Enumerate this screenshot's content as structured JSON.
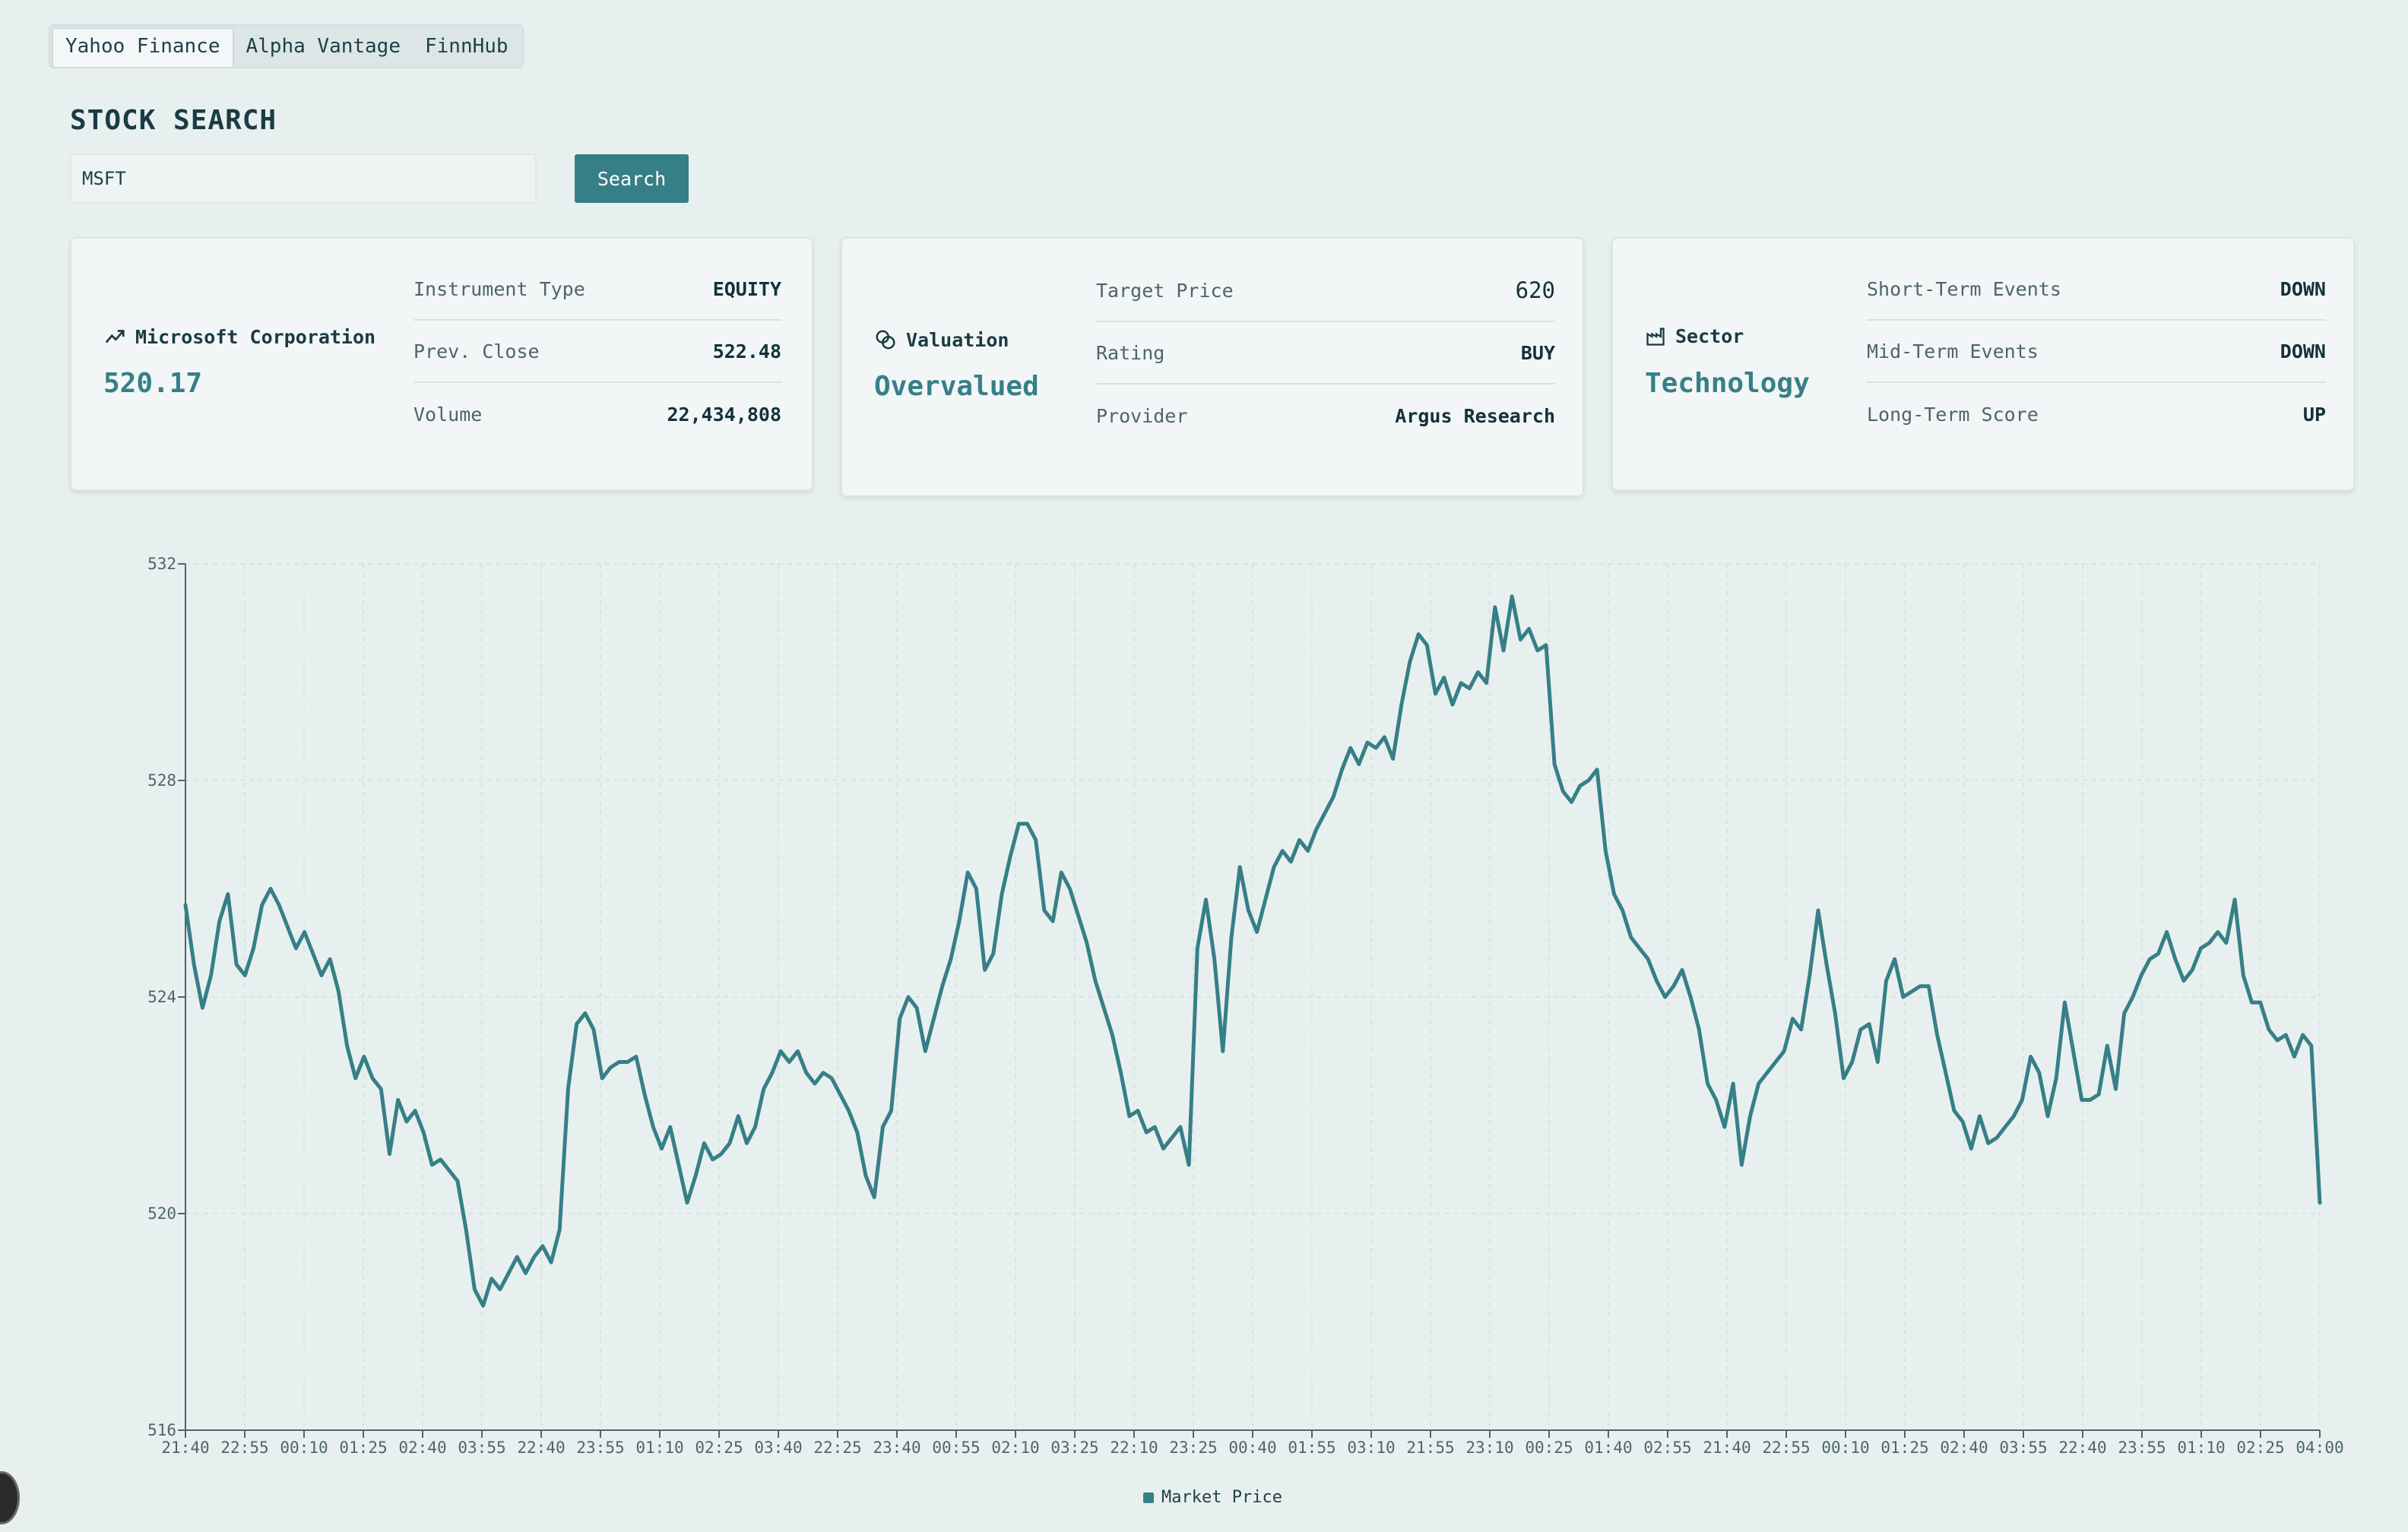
{
  "tabs": [
    {
      "label": "Yahoo Finance",
      "active": true
    },
    {
      "label": "Alpha Vantage",
      "active": false
    },
    {
      "label": "FinnHub",
      "active": false
    }
  ],
  "page_title": "STOCK SEARCH",
  "search": {
    "value": "MSFT",
    "placeholder": "",
    "button_label": "Search"
  },
  "cards": {
    "quote": {
      "name": "Microsoft Corporation",
      "price": "520.17",
      "rows": [
        {
          "label": "Instrument Type",
          "value": "EQUITY"
        },
        {
          "label": "Prev. Close",
          "value": "522.48"
        },
        {
          "label": "Volume",
          "value": "22,434,808"
        }
      ]
    },
    "valuation": {
      "heading": "Valuation",
      "status": "Overvalued",
      "rows": [
        {
          "label": "Target Price",
          "value": "620"
        },
        {
          "label": "Rating",
          "value": "BUY"
        },
        {
          "label": "Provider",
          "value": "Argus Research"
        }
      ]
    },
    "sector": {
      "heading": "Sector",
      "value": "Technology",
      "rows": [
        {
          "label": "Short-Term Events",
          "value": "DOWN"
        },
        {
          "label": "Mid-Term Events",
          "value": "DOWN"
        },
        {
          "label": "Long-Term Score",
          "value": "UP"
        }
      ]
    }
  },
  "colors": {
    "accent": "#377f87",
    "background": "#e8f0ef",
    "card": "#f2f6f6"
  },
  "chart_data": {
    "type": "line",
    "series": [
      {
        "name": "Market Price",
        "values": [
          525.7,
          524.6,
          523.8,
          524.4,
          525.4,
          525.9,
          524.6,
          524.4,
          524.9,
          525.7,
          526.0,
          525.7,
          525.3,
          524.9,
          525.2,
          524.8,
          524.4,
          524.7,
          524.1,
          523.1,
          522.5,
          522.9,
          522.5,
          522.3,
          521.1,
          522.1,
          521.7,
          521.9,
          521.5,
          520.9,
          521.0,
          520.8,
          520.6,
          519.7,
          518.6,
          518.3,
          518.8,
          518.6,
          518.9,
          519.2,
          518.9,
          519.2,
          519.4,
          519.1,
          519.7,
          522.3,
          523.5,
          523.7,
          523.4,
          522.5,
          522.7,
          522.8,
          522.8,
          522.9,
          522.2,
          521.6,
          521.2,
          521.6,
          520.9,
          520.2,
          520.7,
          521.3,
          521.0,
          521.1,
          521.3,
          521.8,
          521.3,
          521.6,
          522.3,
          522.6,
          523.0,
          522.8,
          523.0,
          522.6,
          522.4,
          522.6,
          522.5,
          522.2,
          521.9,
          521.5,
          520.7,
          520.3,
          521.6,
          521.9,
          523.6,
          524.0,
          523.8,
          523.0,
          523.6,
          524.2,
          524.7,
          525.4,
          526.3,
          526.0,
          524.5,
          524.8,
          525.9,
          526.6,
          527.2,
          527.2,
          526.9,
          525.6,
          525.4,
          526.3,
          526.0,
          525.5,
          525.0,
          524.3,
          523.8,
          523.3,
          522.6,
          521.8,
          521.9,
          521.5,
          521.6,
          521.2,
          521.4,
          521.6,
          520.9,
          524.9,
          525.8,
          524.7,
          523.0,
          525.1,
          526.4,
          525.6,
          525.2,
          525.8,
          526.4,
          526.7,
          526.5,
          526.9,
          526.7,
          527.1,
          527.4,
          527.7,
          528.2,
          528.6,
          528.3,
          528.7,
          528.6,
          528.8,
          528.4,
          529.4,
          530.2,
          530.7,
          530.5,
          529.6,
          529.9,
          529.4,
          529.8,
          529.7,
          530.0,
          529.8,
          531.2,
          530.4,
          531.4,
          530.6,
          530.8,
          530.4,
          530.5,
          528.3,
          527.8,
          527.6,
          527.9,
          528.0,
          528.2,
          526.7,
          525.9,
          525.6,
          525.1,
          524.9,
          524.7,
          524.3,
          524.0,
          524.2,
          524.5,
          524.0,
          523.4,
          522.4,
          522.1,
          521.6,
          522.4,
          520.9,
          521.8,
          522.4,
          522.6,
          522.8,
          523.0,
          523.6,
          523.4,
          524.4,
          525.6,
          524.6,
          523.7,
          522.5,
          522.8,
          523.4,
          523.5,
          522.8,
          524.3,
          524.7,
          524.0,
          524.1,
          524.2,
          524.2,
          523.3,
          522.6,
          521.9,
          521.7,
          521.2,
          521.8,
          521.3,
          521.4,
          521.6,
          521.8,
          522.1,
          522.9,
          522.6,
          521.8,
          522.5,
          523.9,
          523.0,
          522.1,
          522.1,
          522.2,
          523.1,
          522.3,
          523.7,
          524.0,
          524.4,
          524.7,
          524.8,
          525.2,
          524.7,
          524.3,
          524.5,
          524.9,
          525.0,
          525.2,
          525.0,
          525.8,
          524.4,
          523.9,
          523.9,
          523.4,
          523.2,
          523.3,
          522.9,
          523.3,
          523.1,
          520.2
        ]
      }
    ],
    "x_tick_labels": [
      "21:40",
      "22:55",
      "00:10",
      "01:25",
      "02:40",
      "03:55",
      "22:40",
      "23:55",
      "01:10",
      "02:25",
      "03:40",
      "22:25",
      "23:40",
      "00:55",
      "02:10",
      "03:25",
      "22:10",
      "23:25",
      "00:40",
      "01:55",
      "03:10",
      "21:55",
      "23:10",
      "00:25",
      "01:40",
      "02:55",
      "21:40",
      "22:55",
      "00:10",
      "01:25",
      "02:40",
      "03:55",
      "22:40",
      "23:55",
      "01:10",
      "02:25",
      "04:00"
    ],
    "y_ticks": [
      516,
      520,
      524,
      528,
      532
    ],
    "ylim": [
      516,
      532
    ],
    "grid": true,
    "legend": "bottom-center",
    "title": "",
    "xlabel": "",
    "ylabel": ""
  }
}
